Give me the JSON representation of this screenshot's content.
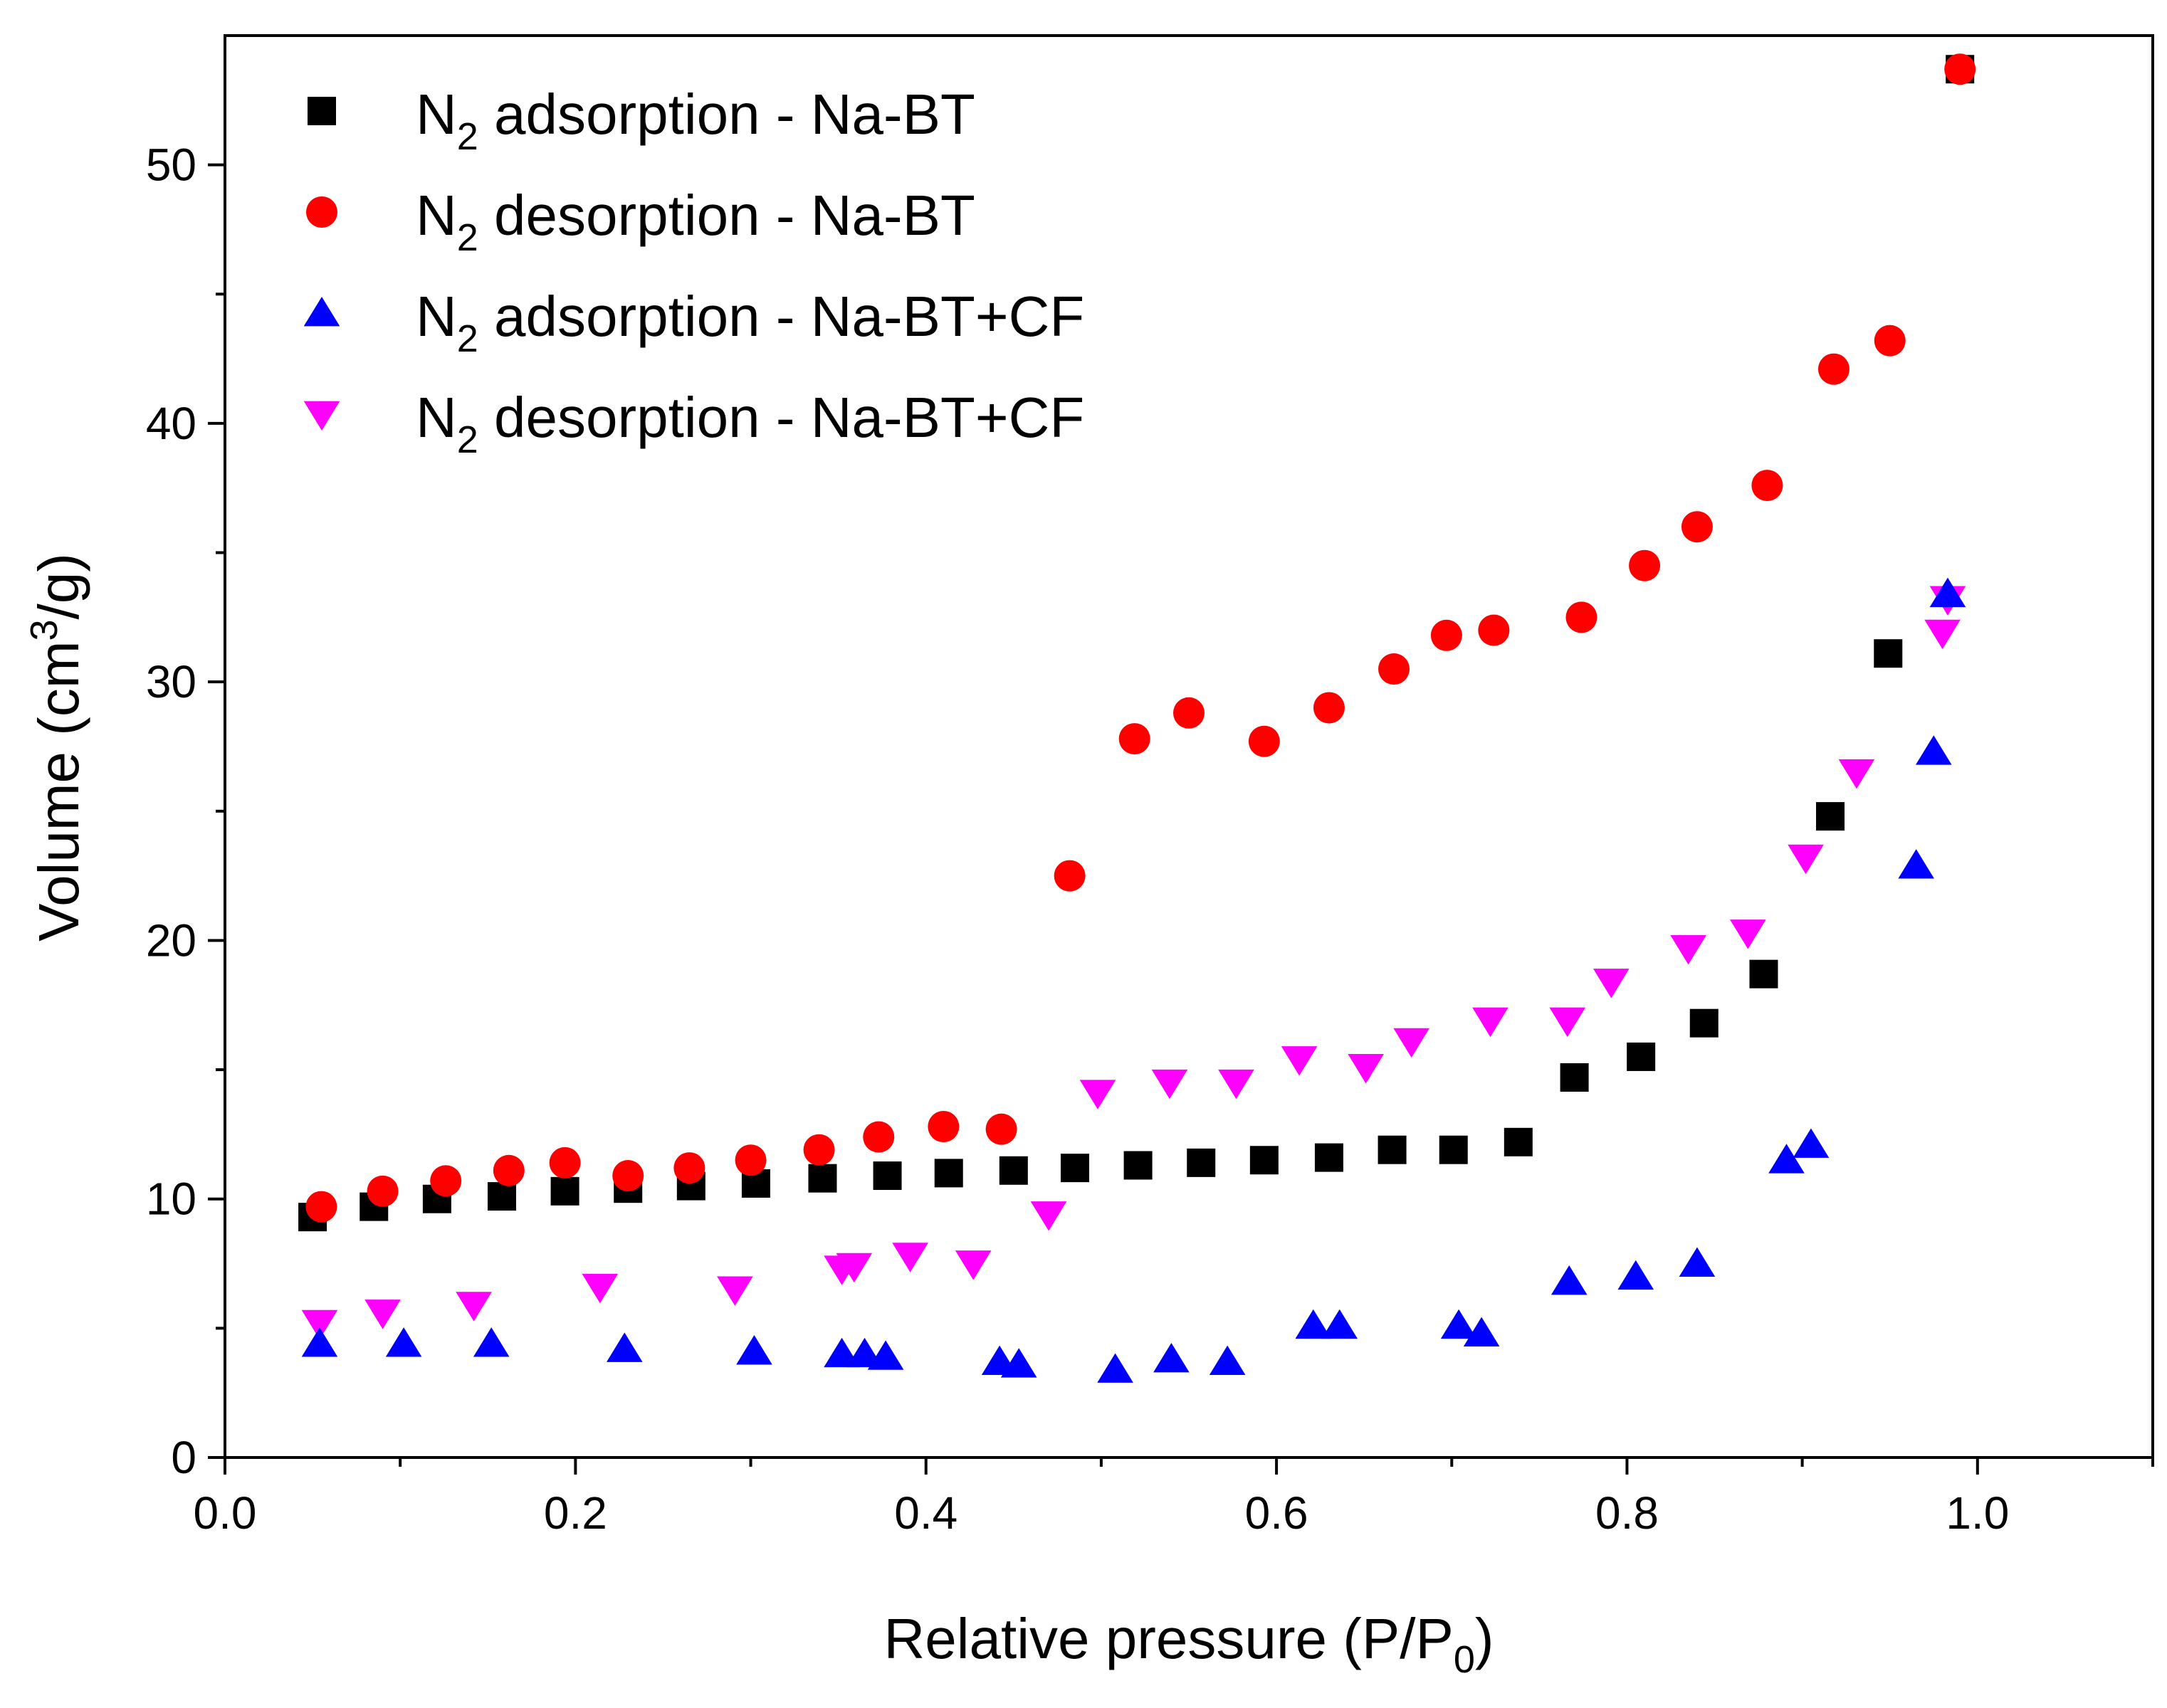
{
  "chart_data": {
    "type": "scatter",
    "title": "",
    "xlabel": "Relative pressure (P/P0)",
    "ylabel": "Volume (cm3/g)",
    "xlim": [
      0.0,
      1.1
    ],
    "ylim": [
      0,
      55
    ],
    "xticks": [
      0.0,
      0.2,
      0.4,
      0.6,
      0.8,
      1.0
    ],
    "xtick_labels": [
      "0.0",
      "0.2",
      "0.4",
      "0.6",
      "0.8",
      "1.0"
    ],
    "yticks": [
      0,
      10,
      20,
      30,
      40,
      50
    ],
    "ytick_labels": [
      "0",
      "10",
      "20",
      "30",
      "40",
      "50"
    ],
    "grid": false,
    "legend_position": "top-left",
    "series": [
      {
        "name": "N2 adsorption - Na-BT",
        "marker": "square",
        "color": "#000000",
        "x": [
          0.05,
          0.085,
          0.121,
          0.158,
          0.194,
          0.23,
          0.266,
          0.303,
          0.341,
          0.378,
          0.413,
          0.45,
          0.485,
          0.521,
          0.557,
          0.593,
          0.63,
          0.666,
          0.701,
          0.738,
          0.77,
          0.808,
          0.844,
          0.878,
          0.916,
          0.949,
          0.99
        ],
        "y": [
          9.3,
          9.7,
          10.0,
          10.1,
          10.3,
          10.4,
          10.5,
          10.6,
          10.8,
          10.9,
          11.0,
          11.1,
          11.2,
          11.3,
          11.4,
          11.5,
          11.6,
          11.9,
          11.9,
          12.2,
          14.7,
          15.5,
          16.8,
          18.7,
          24.8,
          31.1,
          53.7
        ]
      },
      {
        "name": "N2 desorption - Na-BT",
        "marker": "circle",
        "color": "#ff0000",
        "x": [
          0.055,
          0.09,
          0.126,
          0.162,
          0.194,
          0.23,
          0.265,
          0.3,
          0.339,
          0.373,
          0.41,
          0.443,
          0.482,
          0.519,
          0.55,
          0.593,
          0.63,
          0.667,
          0.697,
          0.724,
          0.774,
          0.81,
          0.84,
          0.88,
          0.918,
          0.95,
          0.99
        ],
        "y": [
          9.7,
          10.3,
          10.7,
          11.1,
          11.4,
          10.9,
          11.2,
          11.5,
          11.9,
          12.4,
          12.8,
          12.7,
          22.5,
          27.8,
          28.8,
          27.7,
          29.0,
          30.5,
          31.8,
          32.0,
          32.5,
          34.5,
          36.0,
          37.6,
          42.1,
          43.2,
          53.7
        ]
      },
      {
        "name": "N2 adsorption - Na-BT+CF",
        "marker": "triangle-up",
        "color": "#0000ff",
        "x": [
          0.054,
          0.102,
          0.152,
          0.228,
          0.302,
          0.352,
          0.365,
          0.377,
          0.442,
          0.453,
          0.508,
          0.54,
          0.572,
          0.621,
          0.636,
          0.704,
          0.717,
          0.767,
          0.805,
          0.84,
          0.891,
          0.905,
          0.965,
          0.975,
          0.983
        ],
        "y": [
          4.4,
          4.4,
          4.4,
          4.2,
          4.1,
          4.0,
          4.0,
          3.9,
          3.7,
          3.6,
          3.4,
          3.8,
          3.7,
          5.1,
          5.1,
          5.1,
          4.8,
          6.8,
          7.0,
          7.5,
          11.5,
          12.1,
          22.9,
          27.3,
          33.4
        ]
      },
      {
        "name": "N2 desorption - Na-BT+CF",
        "marker": "triangle-down",
        "color": "#ff00ff",
        "x": [
          0.054,
          0.09,
          0.142,
          0.214,
          0.291,
          0.352,
          0.359,
          0.391,
          0.427,
          0.47,
          0.498,
          0.539,
          0.577,
          0.613,
          0.651,
          0.677,
          0.722,
          0.766,
          0.791,
          0.835,
          0.869,
          0.902,
          0.931,
          0.98,
          0.983
        ],
        "y": [
          5.2,
          5.6,
          5.9,
          6.6,
          6.5,
          7.3,
          7.4,
          7.8,
          7.5,
          9.4,
          14.1,
          14.5,
          14.5,
          15.4,
          15.1,
          16.1,
          16.9,
          16.9,
          18.4,
          19.7,
          20.3,
          23.2,
          26.5,
          31.9,
          33.2
        ]
      }
    ]
  }
}
